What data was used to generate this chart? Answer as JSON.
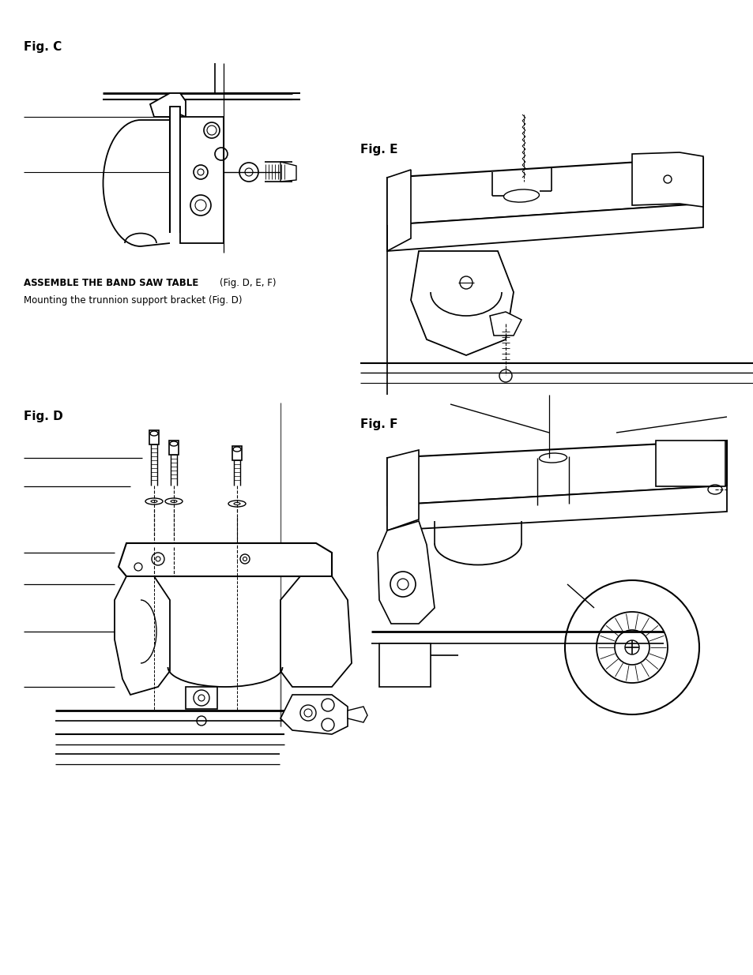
{
  "background_color": "#ffffff",
  "fig_c_label": "Fig. C",
  "fig_d_label": "Fig. D",
  "fig_e_label": "Fig. E",
  "fig_f_label": "Fig. F",
  "text1_part1": "ASSEMBLE THE BAND SAW TABLE ",
  "text1_part2": "(Fig. D, E, F)",
  "text2": "Mounting the trunnion support bracket (Fig. D)",
  "line_color": "#000000",
  "label_fontsize": 10.5,
  "text_fontsize": 8.5
}
